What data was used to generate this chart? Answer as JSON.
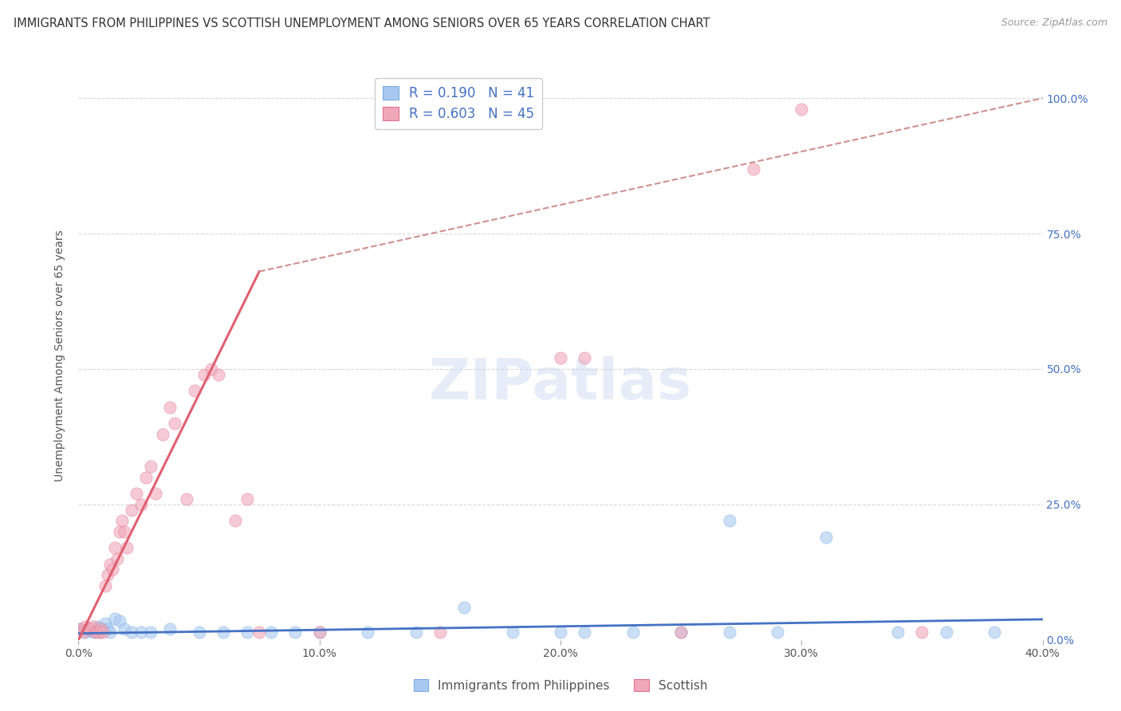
{
  "title": "IMMIGRANTS FROM PHILIPPINES VS SCOTTISH UNEMPLOYMENT AMONG SENIORS OVER 65 YEARS CORRELATION CHART",
  "source": "Source: ZipAtlas.com",
  "ylabel": "Unemployment Among Seniors over 65 years",
  "xlim": [
    0.0,
    0.4
  ],
  "ylim": [
    0.0,
    1.05
  ],
  "legend_entries": [
    {
      "label": "Immigrants from Philippines",
      "R": "0.190",
      "N": "41",
      "color": "#a8c8f0"
    },
    {
      "label": "Scottish",
      "R": "0.603",
      "N": "45",
      "color": "#f0a8b8"
    }
  ],
  "watermark": "ZIPatlas",
  "blue_scatter": [
    [
      0.001,
      0.02
    ],
    [
      0.002,
      0.018
    ],
    [
      0.003,
      0.015
    ],
    [
      0.004,
      0.02
    ],
    [
      0.005,
      0.018
    ],
    [
      0.006,
      0.015
    ],
    [
      0.007,
      0.02
    ],
    [
      0.008,
      0.025
    ],
    [
      0.009,
      0.015
    ],
    [
      0.01,
      0.02
    ],
    [
      0.011,
      0.03
    ],
    [
      0.012,
      0.02
    ],
    [
      0.013,
      0.015
    ],
    [
      0.015,
      0.04
    ],
    [
      0.017,
      0.035
    ],
    [
      0.019,
      0.02
    ],
    [
      0.022,
      0.015
    ],
    [
      0.026,
      0.015
    ],
    [
      0.03,
      0.015
    ],
    [
      0.038,
      0.02
    ],
    [
      0.05,
      0.015
    ],
    [
      0.06,
      0.015
    ],
    [
      0.07,
      0.015
    ],
    [
      0.08,
      0.015
    ],
    [
      0.09,
      0.015
    ],
    [
      0.1,
      0.015
    ],
    [
      0.12,
      0.015
    ],
    [
      0.14,
      0.015
    ],
    [
      0.16,
      0.06
    ],
    [
      0.18,
      0.015
    ],
    [
      0.2,
      0.015
    ],
    [
      0.21,
      0.015
    ],
    [
      0.23,
      0.015
    ],
    [
      0.25,
      0.015
    ],
    [
      0.27,
      0.015
    ],
    [
      0.29,
      0.015
    ],
    [
      0.27,
      0.22
    ],
    [
      0.31,
      0.19
    ],
    [
      0.34,
      0.015
    ],
    [
      0.36,
      0.015
    ],
    [
      0.38,
      0.015
    ]
  ],
  "pink_scatter": [
    [
      0.001,
      0.02
    ],
    [
      0.002,
      0.015
    ],
    [
      0.003,
      0.025
    ],
    [
      0.004,
      0.02
    ],
    [
      0.005,
      0.02
    ],
    [
      0.006,
      0.025
    ],
    [
      0.007,
      0.015
    ],
    [
      0.008,
      0.015
    ],
    [
      0.009,
      0.02
    ],
    [
      0.01,
      0.015
    ],
    [
      0.011,
      0.1
    ],
    [
      0.012,
      0.12
    ],
    [
      0.013,
      0.14
    ],
    [
      0.014,
      0.13
    ],
    [
      0.015,
      0.17
    ],
    [
      0.016,
      0.15
    ],
    [
      0.017,
      0.2
    ],
    [
      0.018,
      0.22
    ],
    [
      0.019,
      0.2
    ],
    [
      0.02,
      0.17
    ],
    [
      0.022,
      0.24
    ],
    [
      0.024,
      0.27
    ],
    [
      0.026,
      0.25
    ],
    [
      0.028,
      0.3
    ],
    [
      0.03,
      0.32
    ],
    [
      0.032,
      0.27
    ],
    [
      0.035,
      0.38
    ],
    [
      0.038,
      0.43
    ],
    [
      0.04,
      0.4
    ],
    [
      0.045,
      0.26
    ],
    [
      0.048,
      0.46
    ],
    [
      0.052,
      0.49
    ],
    [
      0.055,
      0.5
    ],
    [
      0.058,
      0.49
    ],
    [
      0.065,
      0.22
    ],
    [
      0.07,
      0.26
    ],
    [
      0.075,
      0.015
    ],
    [
      0.1,
      0.015
    ],
    [
      0.15,
      0.015
    ],
    [
      0.2,
      0.52
    ],
    [
      0.21,
      0.52
    ],
    [
      0.25,
      0.015
    ],
    [
      0.28,
      0.87
    ],
    [
      0.3,
      0.98
    ],
    [
      0.35,
      0.015
    ]
  ],
  "blue_line_x": [
    0.0,
    0.4
  ],
  "blue_line_y": [
    0.012,
    0.038
  ],
  "pink_line_x": [
    0.0,
    0.075
  ],
  "pink_line_y": [
    0.0,
    0.68
  ],
  "dashed_line_x": [
    0.075,
    0.4
  ],
  "dashed_line_y": [
    0.68,
    1.0
  ],
  "grid_color": "#d8d8d8",
  "background_color": "#ffffff",
  "title_color": "#333333",
  "axis_color": "#555555",
  "blue_color": "#a8c8f0",
  "blue_edge_color": "#7aaae0",
  "pink_color": "#f0a8b8",
  "pink_edge_color": "#e07090",
  "blue_line_color": "#4472c4",
  "pink_line_color": "#e06070",
  "dashed_line_color": "#d09090"
}
